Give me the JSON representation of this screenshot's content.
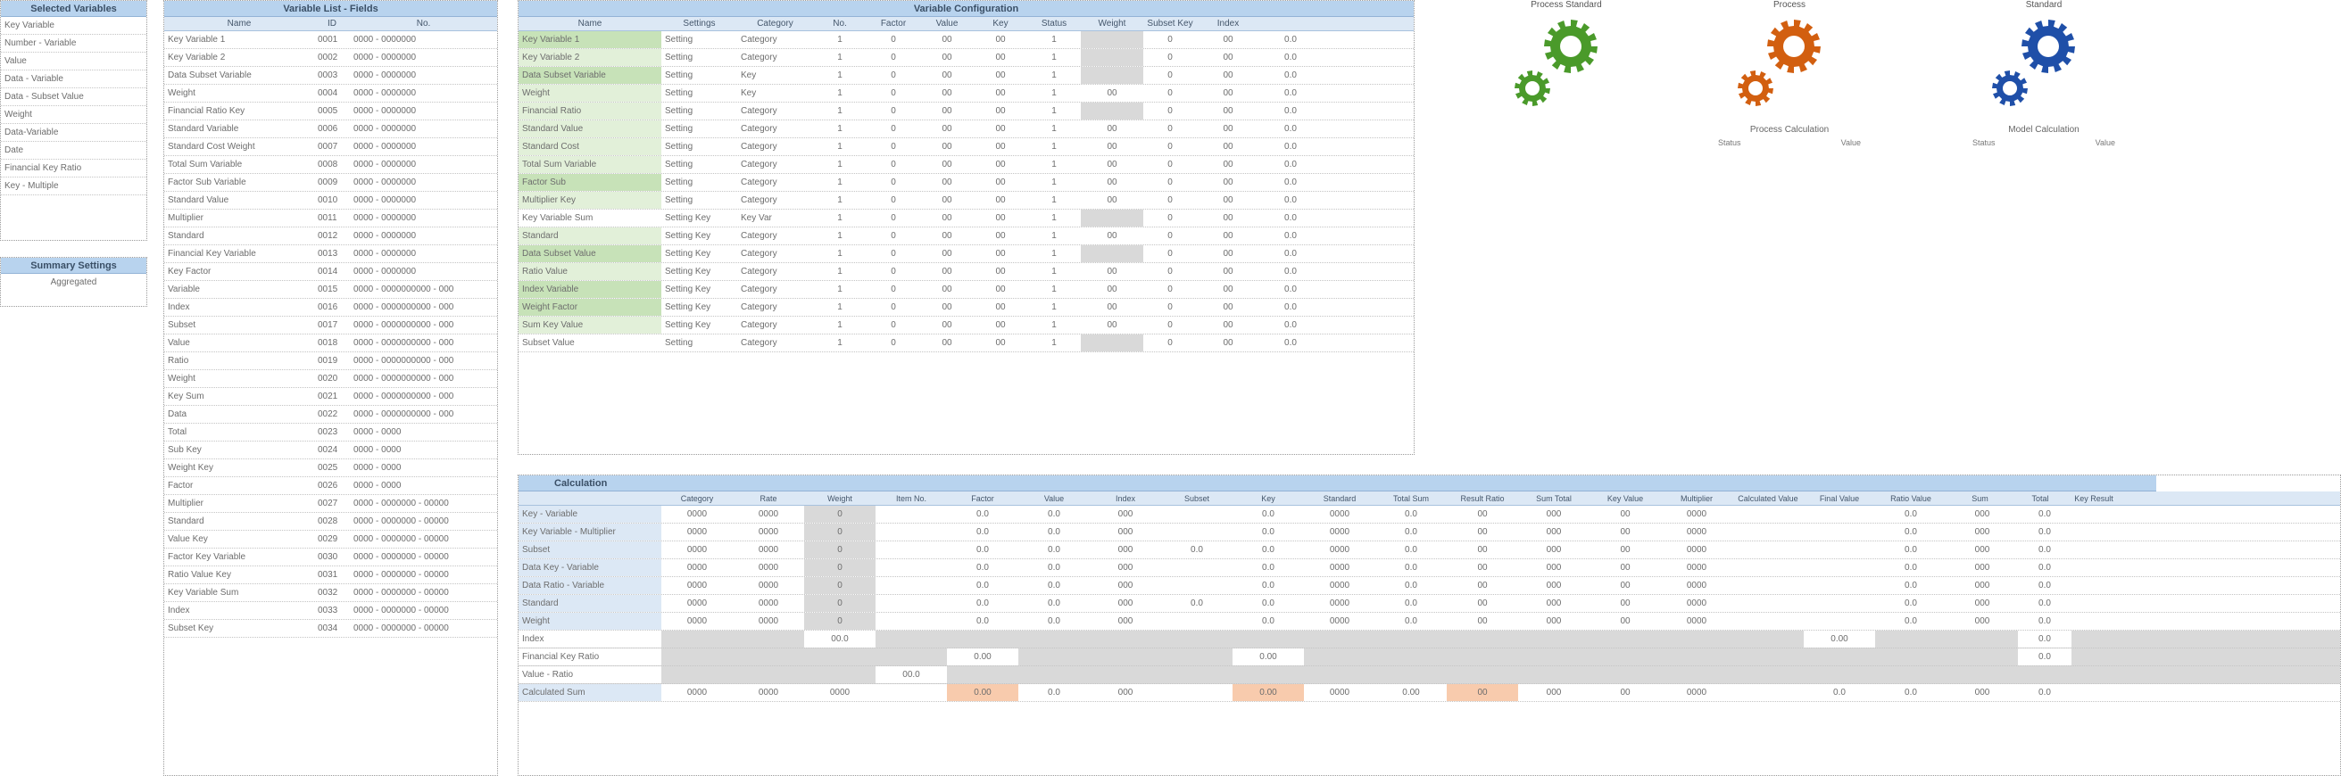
{
  "panel_a": {
    "title": "Selected Variables",
    "items": [
      "Key Variable",
      "Number - Variable",
      "Value",
      "Data - Variable",
      "Data - Subset Value",
      "Weight",
      "Data-Variable",
      "Date",
      "Financial Key Ratio",
      "Key - Multiple"
    ],
    "sub_title": "Summary Settings",
    "sub_value": "Aggregated"
  },
  "panel_b": {
    "title": "Variable List - Fields",
    "cols": [
      "Name",
      "ID",
      "No."
    ],
    "rows": [
      [
        "Key Variable 1",
        "0001",
        "0000 - 0000000"
      ],
      [
        "Key Variable 2",
        "0002",
        "0000 - 0000000"
      ],
      [
        "Data Subset Variable",
        "0003",
        "0000 - 0000000"
      ],
      [
        "Weight",
        "0004",
        "0000 - 0000000"
      ],
      [
        "Financial Ratio Key",
        "0005",
        "0000 - 0000000"
      ],
      [
        "Standard Variable",
        "0006",
        "0000 - 0000000"
      ],
      [
        "Standard Cost Weight",
        "0007",
        "0000 - 0000000"
      ],
      [
        "Total Sum Variable",
        "0008",
        "0000 - 0000000"
      ],
      [
        "Factor Sub Variable",
        "0009",
        "0000 - 0000000"
      ],
      [
        "Standard Value",
        "0010",
        "0000 - 0000000"
      ],
      [
        "Multiplier",
        "0011",
        "0000 - 0000000"
      ],
      [
        "Standard",
        "0012",
        "0000 - 0000000"
      ],
      [
        "Financial Key Variable",
        "0013",
        "0000 - 0000000"
      ],
      [
        "Key Factor",
        "0014",
        "0000 - 0000000"
      ],
      [
        "Variable",
        "0015",
        "0000 - 0000000000 - 000"
      ],
      [
        "Index",
        "0016",
        "0000 - 0000000000 - 000"
      ],
      [
        "Subset",
        "0017",
        "0000 - 0000000000 - 000"
      ],
      [
        "Value",
        "0018",
        "0000 - 0000000000 - 000"
      ],
      [
        "Ratio",
        "0019",
        "0000 - 0000000000 - 000"
      ],
      [
        "Weight",
        "0020",
        "0000 - 0000000000 - 000"
      ],
      [
        "Key Sum",
        "0021",
        "0000 - 0000000000 - 000"
      ],
      [
        "Data",
        "0022",
        "0000 - 0000000000 - 000"
      ],
      [
        "Total",
        "0023",
        "0000 - 0000"
      ],
      [
        "Sub Key",
        "0024",
        "0000 - 0000"
      ],
      [
        "Weight Key",
        "0025",
        "0000 - 0000"
      ],
      [
        "Factor",
        "0026",
        "0000 - 0000"
      ],
      [
        "Multiplier",
        "0027",
        "0000 - 0000000 - 00000"
      ],
      [
        "Standard",
        "0028",
        "0000 - 0000000 - 00000"
      ],
      [
        "Value Key",
        "0029",
        "0000 - 0000000 - 00000"
      ],
      [
        "Factor Key Variable",
        "0030",
        "0000 - 0000000 - 00000"
      ],
      [
        "Ratio Value Key",
        "0031",
        "0000 - 0000000 - 00000"
      ],
      [
        "Key Variable Sum",
        "0032",
        "0000 - 0000000 - 00000"
      ],
      [
        "Index",
        "0033",
        "0000 - 0000000 - 00000"
      ],
      [
        "Subset Key",
        "0034",
        "0000 - 0000000 - 00000"
      ]
    ]
  },
  "panel_c": {
    "title": "Variable Configuration",
    "cols": [
      "Name",
      "Settings",
      "Category",
      "No.",
      "Factor",
      "Value",
      "Key",
      "Status",
      "Weight",
      "Subset Key",
      "Index"
    ],
    "rows": [
      [
        "Key Variable 1",
        "Setting",
        "Category",
        "1",
        "0",
        "00",
        "00",
        "1",
        "",
        "0",
        "00",
        "0.0"
      ],
      [
        "Key Variable 2",
        "Setting",
        "Category",
        "1",
        "0",
        "00",
        "00",
        "1",
        "",
        "0",
        "00",
        "0.0"
      ],
      [
        "Data Subset Variable",
        "Setting",
        "Key",
        "1",
        "0",
        "00",
        "00",
        "1",
        "",
        "0",
        "00",
        "0.0"
      ],
      [
        "Weight",
        "Setting",
        "Key",
        "1",
        "0",
        "00",
        "00",
        "1",
        "00",
        "0",
        "00",
        "0.0"
      ],
      [
        "Financial Ratio",
        "Setting",
        "Category",
        "1",
        "0",
        "00",
        "00",
        "1",
        "",
        "0",
        "00",
        "0.0"
      ],
      [
        "Standard Value",
        "Setting",
        "Category",
        "1",
        "0",
        "00",
        "00",
        "1",
        "00",
        "0",
        "00",
        "0.0"
      ],
      [
        "Standard Cost",
        "Setting",
        "Category",
        "1",
        "0",
        "00",
        "00",
        "1",
        "00",
        "0",
        "00",
        "0.0"
      ],
      [
        "Total Sum Variable",
        "Setting",
        "Category",
        "1",
        "0",
        "00",
        "00",
        "1",
        "00",
        "0",
        "00",
        "0.0"
      ],
      [
        "Factor Sub",
        "Setting",
        "Category",
        "1",
        "0",
        "00",
        "00",
        "1",
        "00",
        "0",
        "00",
        "0.0"
      ],
      [
        "Multiplier Key",
        "Setting",
        "Category",
        "1",
        "0",
        "00",
        "00",
        "1",
        "00",
        "0",
        "00",
        "0.0"
      ],
      [
        "Key Variable Sum",
        "Setting Key",
        "Key Var",
        "1",
        "0",
        "00",
        "00",
        "1",
        "",
        "0",
        "00",
        "0.0"
      ],
      [
        "Standard",
        "Setting Key",
        "Category",
        "1",
        "0",
        "00",
        "00",
        "1",
        "00",
        "0",
        "00",
        "0.0"
      ],
      [
        "Data Subset Value",
        "Setting Key",
        "Category",
        "1",
        "0",
        "00",
        "00",
        "1",
        "",
        "0",
        "00",
        "0.0"
      ],
      [
        "Ratio Value",
        "Setting Key",
        "Category",
        "1",
        "0",
        "00",
        "00",
        "1",
        "00",
        "0",
        "00",
        "0.0"
      ],
      [
        "Index Variable",
        "Setting Key",
        "Category",
        "1",
        "0",
        "00",
        "00",
        "1",
        "00",
        "0",
        "00",
        "0.0"
      ],
      [
        "Weight Factor",
        "Setting Key",
        "Category",
        "1",
        "0",
        "00",
        "00",
        "1",
        "00",
        "0",
        "00",
        "0.0"
      ],
      [
        "Sum Key Value",
        "Setting Key",
        "Category",
        "1",
        "0",
        "00",
        "00",
        "1",
        "00",
        "0",
        "00",
        "0.0"
      ],
      [
        "Subset Value",
        "Setting",
        "Category",
        "1",
        "0",
        "00",
        "00",
        "1",
        "",
        "0",
        "00",
        "0.0"
      ]
    ]
  },
  "gears": [
    {
      "title": "Process Standard",
      "color": "#4a9a2a",
      "sub": "",
      "left": "",
      "right": ""
    },
    {
      "title": "Process",
      "color": "#d25f10",
      "sub": "Process Calculation",
      "left": "Status",
      "right": "Value"
    },
    {
      "title": "Standard",
      "color": "#1f4fa8",
      "sub": "Model Calculation",
      "left": "Status",
      "right": "Value"
    }
  ],
  "panel_d": {
    "title": "Calculation",
    "cols": [
      "Category",
      "Rate",
      "Weight",
      "Item No.",
      "Factor",
      "Value",
      "Index",
      "Subset",
      "Key",
      "Standard",
      "Total Sum",
      "Result Ratio",
      "Sum Total",
      "Key Value",
      "Multiplier",
      "Calculated Value",
      "Final Value",
      "Ratio Value",
      "Sum"
    ],
    "extra_cols": [
      "Total",
      "Key Result"
    ],
    "rows": [
      [
        "Key - Variable",
        "0000",
        "0000",
        "0",
        "",
        "0.0",
        "0.0",
        "000",
        "",
        "0.0",
        "0000",
        "0.0",
        "00",
        "000",
        "00",
        "0000",
        "",
        "",
        "0.0",
        "000",
        "0.0"
      ],
      [
        "Key Variable - Multiplier",
        "0000",
        "0000",
        "0",
        "",
        "0.0",
        "0.0",
        "000",
        "",
        "0.0",
        "0000",
        "0.0",
        "00",
        "000",
        "00",
        "0000",
        "",
        "",
        "0.0",
        "000",
        "0.0"
      ],
      [
        "Subset",
        "0000",
        "0000",
        "0",
        "",
        "0.0",
        "0.0",
        "000",
        "0.0",
        "0.0",
        "0000",
        "0.0",
        "00",
        "000",
        "00",
        "0000",
        "",
        "",
        "0.0",
        "000",
        "0.0"
      ],
      [
        "Data Key - Variable",
        "0000",
        "0000",
        "0",
        "",
        "0.0",
        "0.0",
        "000",
        "",
        "0.0",
        "0000",
        "0.0",
        "00",
        "000",
        "00",
        "0000",
        "",
        "",
        "0.0",
        "000",
        "0.0"
      ],
      [
        "Data Ratio - Variable",
        "0000",
        "0000",
        "0",
        "",
        "0.0",
        "0.0",
        "000",
        "",
        "0.0",
        "0000",
        "0.0",
        "00",
        "000",
        "00",
        "0000",
        "",
        "",
        "0.0",
        "000",
        "0.0"
      ],
      [
        "Standard",
        "0000",
        "0000",
        "0",
        "",
        "0.0",
        "0.0",
        "000",
        "0.0",
        "0.0",
        "0000",
        "0.0",
        "00",
        "000",
        "00",
        "0000",
        "",
        "",
        "0.0",
        "000",
        "0.0"
      ],
      [
        "Weight",
        "0000",
        "0000",
        "0",
        "",
        "0.0",
        "0.0",
        "000",
        "",
        "0.0",
        "0000",
        "0.0",
        "00",
        "000",
        "00",
        "0000",
        "",
        "",
        "0.0",
        "000",
        "0.0"
      ],
      [
        "Index",
        "",
        "",
        "00.0",
        "",
        "",
        "",
        "",
        "",
        "",
        "",
        "",
        "",
        "",
        "",
        "",
        "",
        "0.00",
        "",
        "",
        "0.0"
      ],
      [
        "Financial Key Ratio",
        "",
        "",
        "",
        "",
        "0.00",
        "",
        "",
        "",
        "0.00",
        "",
        "",
        "",
        "",
        "",
        "",
        "",
        "",
        "",
        "",
        "0.0"
      ],
      [
        "Value - Ratio",
        "",
        "",
        "",
        "00.0",
        "",
        "",
        "",
        "",
        "",
        "",
        "",
        "",
        "",
        "",
        "",
        "",
        "",
        "",
        "",
        ""
      ],
      [
        "Calculated Sum",
        "0000",
        "0000",
        "0000",
        "",
        "0.00",
        "0.0",
        "000",
        "",
        "0.00",
        "0000",
        "0.00",
        "00",
        "000",
        "00",
        "0000",
        "",
        "0.0",
        "0.0",
        "000",
        "0.0"
      ]
    ]
  }
}
